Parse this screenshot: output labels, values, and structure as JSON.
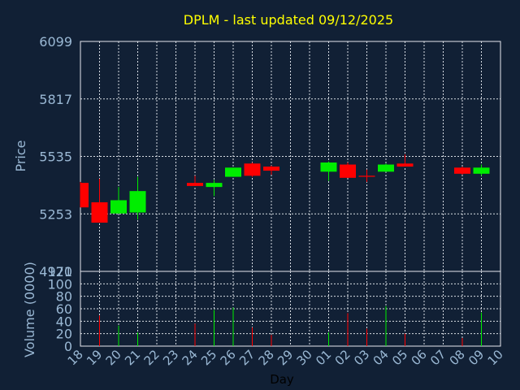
{
  "chart_data": {
    "type": "candlestick",
    "title": "DPLM - last updated 09/12/2025",
    "xlabel": "Day",
    "ylabel_price": "Price",
    "ylabel_volume": "Volume (0000)",
    "price_ylim": [
      4971,
      6099
    ],
    "price_yticks": [
      6099,
      5817,
      5535,
      5253,
      4971
    ],
    "volume_ylim": [
      0,
      120
    ],
    "volume_yticks": [
      120,
      100,
      80,
      60,
      40,
      20,
      0
    ],
    "x_tick_labels": [
      "18",
      "19",
      "20",
      "21",
      "22",
      "23",
      "24",
      "25",
      "26",
      "27",
      "28",
      "29",
      "30",
      "01",
      "02",
      "03",
      "04",
      "05",
      "06",
      "07",
      "08",
      "09",
      "10"
    ],
    "candles": [
      {
        "x": 0.0,
        "open": 5405,
        "high": 5410,
        "low": 5285,
        "close": 5285
      },
      {
        "x": 1.0,
        "open": 5310,
        "high": 5425,
        "low": 5210,
        "close": 5210
      },
      {
        "x": 2.0,
        "open": 5255,
        "high": 5385,
        "low": 5255,
        "close": 5320
      },
      {
        "x": 3.0,
        "open": 5260,
        "high": 5435,
        "low": 5225,
        "close": 5365
      },
      {
        "x": 6.0,
        "open": 5405,
        "high": 5440,
        "low": 5390,
        "close": 5390
      },
      {
        "x": 7.0,
        "open": 5385,
        "high": 5420,
        "low": 5340,
        "close": 5405
      },
      {
        "x": 8.0,
        "open": 5435,
        "high": 5480,
        "low": 5435,
        "close": 5480
      },
      {
        "x": 9.0,
        "open": 5500,
        "high": 5505,
        "low": 5435,
        "close": 5440
      },
      {
        "x": 10.0,
        "open": 5485,
        "high": 5490,
        "low": 5445,
        "close": 5465
      },
      {
        "x": 13.0,
        "open": 5460,
        "high": 5510,
        "low": 5415,
        "close": 5505
      },
      {
        "x": 14.0,
        "open": 5495,
        "high": 5505,
        "low": 5430,
        "close": 5430
      },
      {
        "x": 15.0,
        "open": 5440,
        "high": 5470,
        "low": 5410,
        "close": 5435
      },
      {
        "x": 16.0,
        "open": 5460,
        "high": 5500,
        "low": 5460,
        "close": 5495
      },
      {
        "x": 17.0,
        "open": 5500,
        "high": 5545,
        "low": 5485,
        "close": 5485
      },
      {
        "x": 20.0,
        "open": 5480,
        "high": 5485,
        "low": 5445,
        "close": 5450
      },
      {
        "x": 21.0,
        "open": 5450,
        "high": 5495,
        "low": 5440,
        "close": 5480
      }
    ],
    "volumes": [
      {
        "x": 1.0,
        "value": 49,
        "color": "red"
      },
      {
        "x": 2.0,
        "value": 33,
        "color": "green"
      },
      {
        "x": 3.0,
        "value": 22,
        "color": "green"
      },
      {
        "x": 6.0,
        "value": 36,
        "color": "red"
      },
      {
        "x": 7.0,
        "value": 58,
        "color": "green"
      },
      {
        "x": 8.0,
        "value": 62,
        "color": "green"
      },
      {
        "x": 9.0,
        "value": 30,
        "color": "red"
      },
      {
        "x": 10.0,
        "value": 18,
        "color": "red"
      },
      {
        "x": 13.0,
        "value": 22,
        "color": "green"
      },
      {
        "x": 14.0,
        "value": 53,
        "color": "red"
      },
      {
        "x": 15.0,
        "value": 28,
        "color": "red"
      },
      {
        "x": 16.0,
        "value": 64,
        "color": "green"
      },
      {
        "x": 17.0,
        "value": 20,
        "color": "red"
      },
      {
        "x": 20.0,
        "value": 13,
        "color": "red"
      },
      {
        "x": 21.0,
        "value": 54,
        "color": "green"
      }
    ],
    "grid": true,
    "colors": {
      "background": "#112035",
      "up": "#00ee00",
      "down": "#ff0000",
      "title": "#ffff00",
      "axis_text": "#9ab8d4",
      "grid": "#d8dde4"
    }
  }
}
